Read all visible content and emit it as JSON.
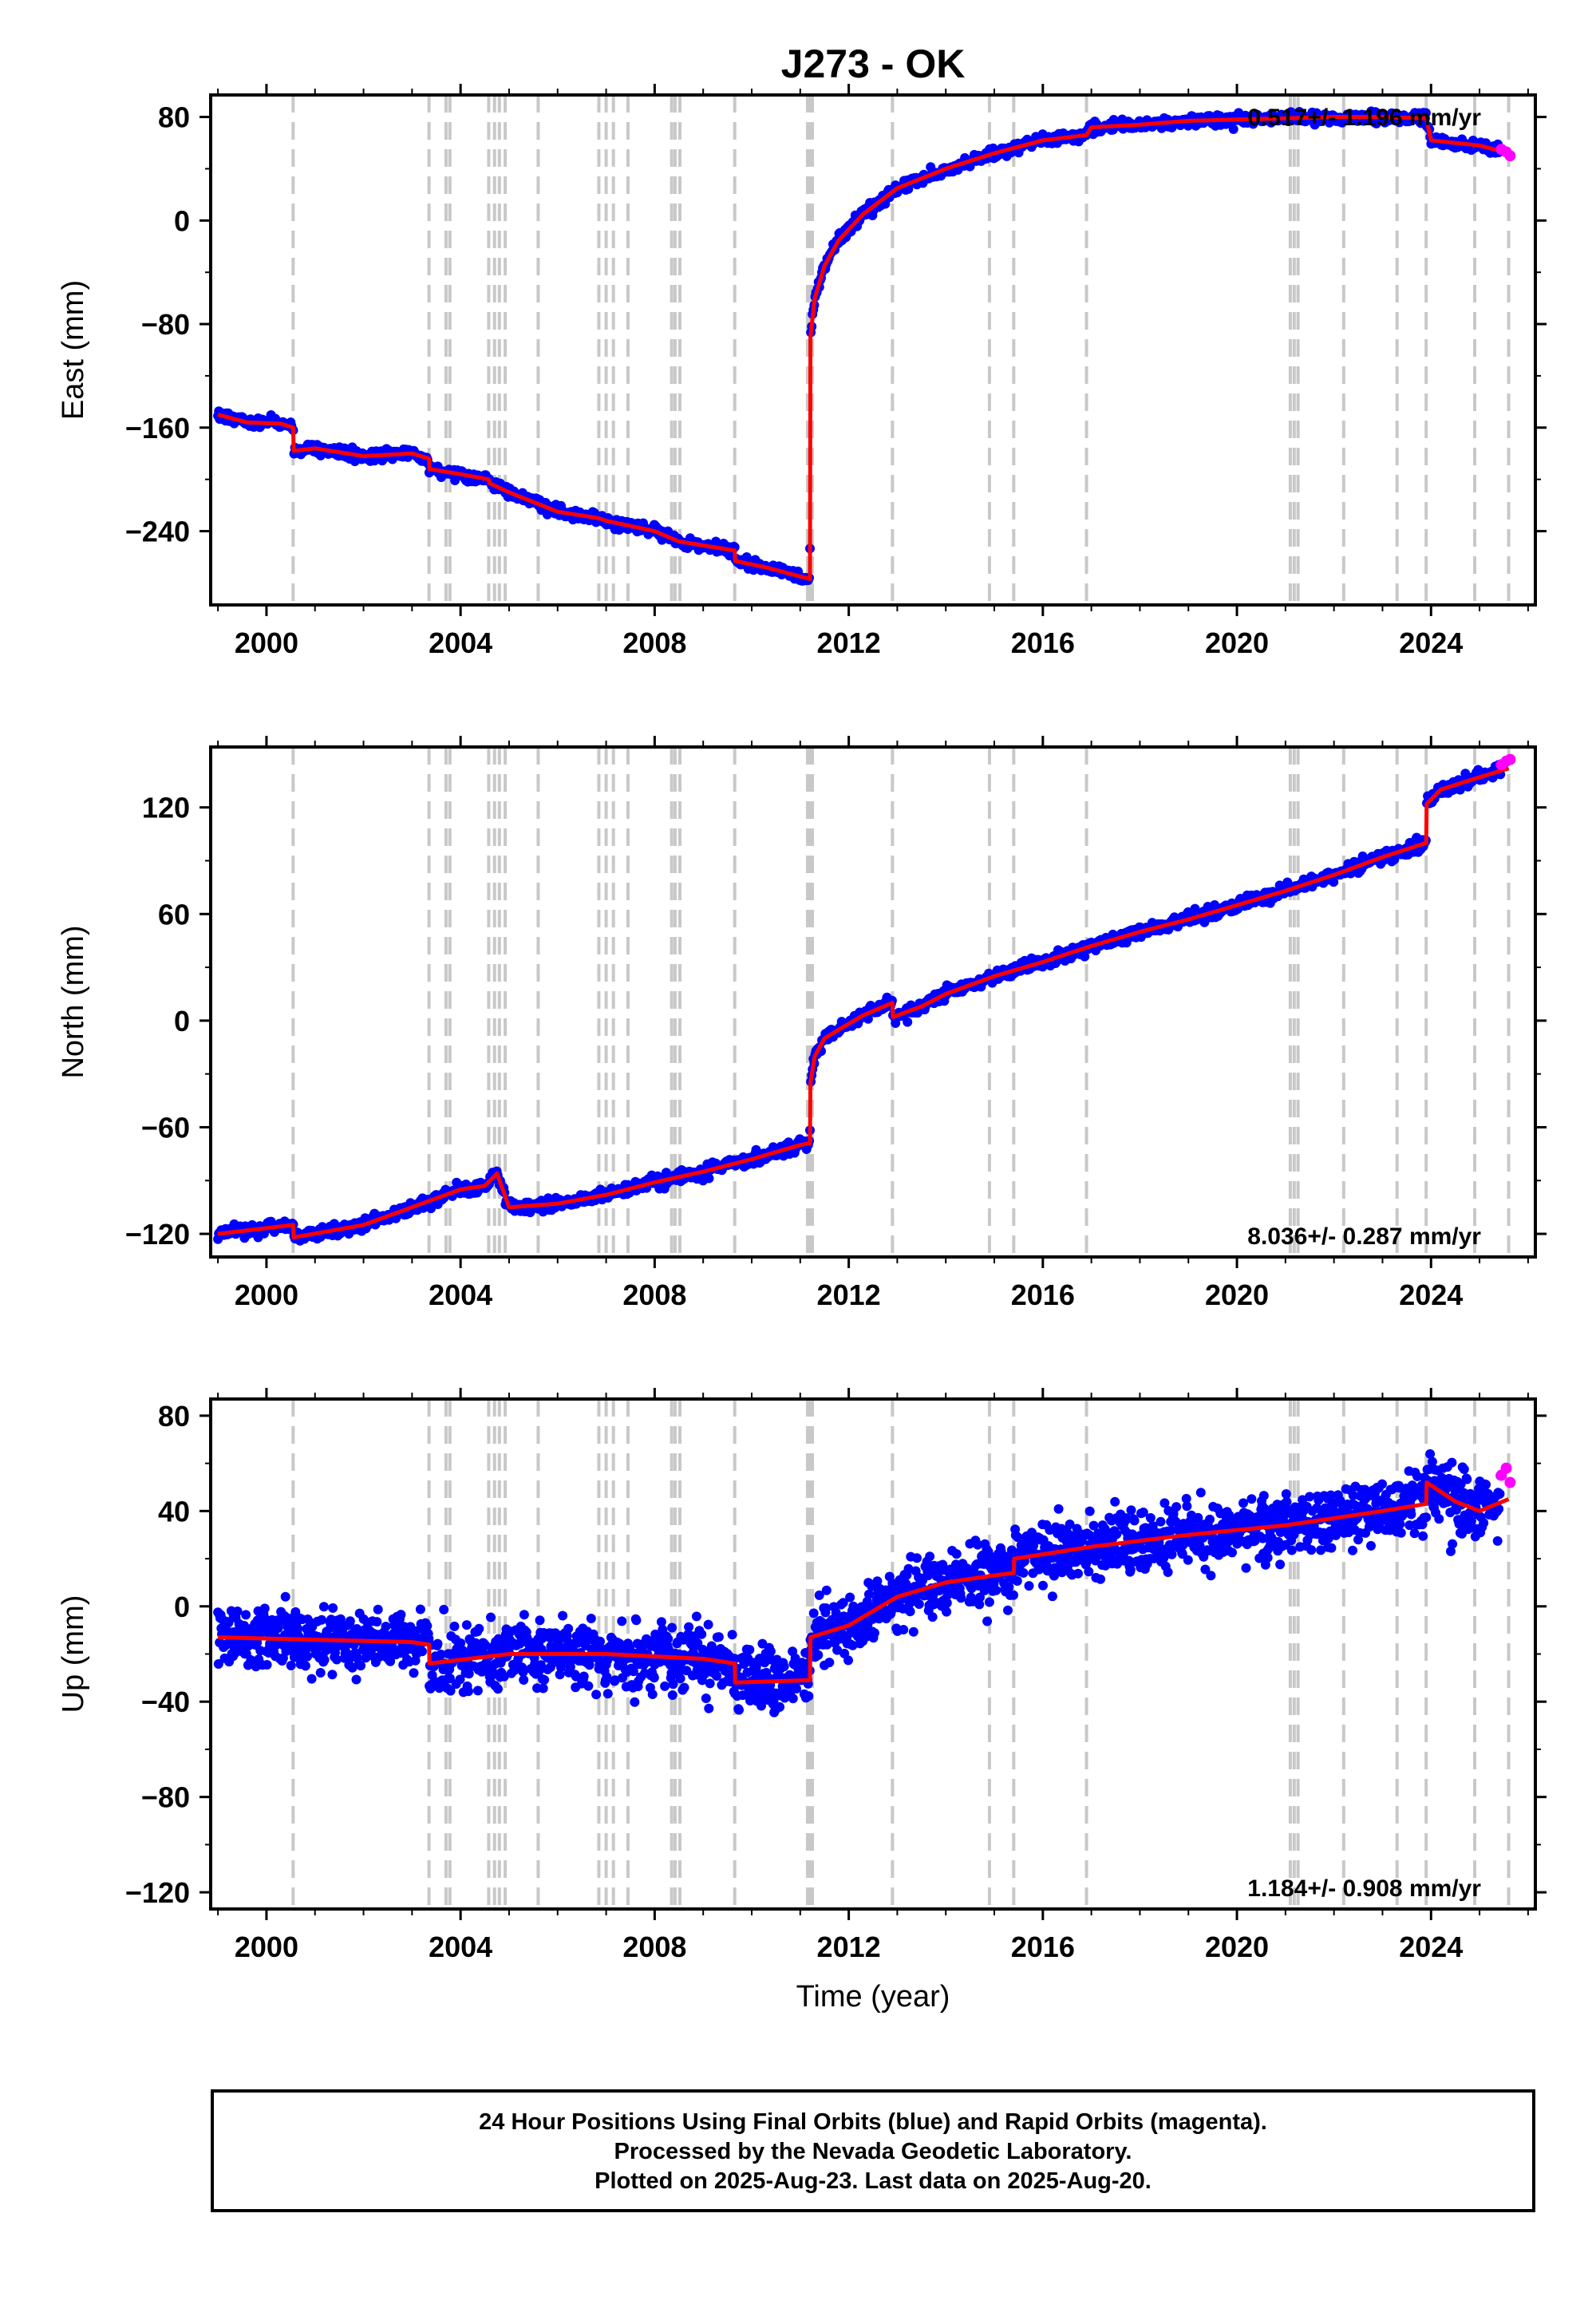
{
  "chart_data": {
    "type": "scatter",
    "title": "J273 - OK",
    "xlabel": "Time (year)",
    "xlim": [
      1998.85,
      2026.15
    ],
    "xticks": [
      2000,
      2004,
      2008,
      2012,
      2016,
      2020,
      2024
    ],
    "grid": false,
    "equipment_changes": [
      2000.55,
      2003.35,
      2003.7,
      2003.78,
      2004.58,
      2004.7,
      2004.8,
      2004.92,
      2005.6,
      2006.85,
      2007.0,
      2007.15,
      2007.45,
      2008.35,
      2008.42,
      2008.52,
      2009.65,
      2011.15,
      2011.2,
      2011.25,
      2012.9,
      2014.9,
      2015.4,
      2016.9,
      2021.1,
      2021.18,
      2021.26,
      2022.2,
      2023.3,
      2023.9,
      2024.9,
      2025.6
    ],
    "panels": [
      {
        "name": "East",
        "ylabel": "East (mm)",
        "ylim": [
          -297,
          97
        ],
        "yticks": [
          -240,
          -160,
          -80,
          0,
          80
        ],
        "rate": "0.517+/- 1.196 mm/yr",
        "rate_pos": "top-right",
        "scatter": 3,
        "model": {
          "x": [
            1999.0,
            1999.6,
            2000.3,
            2000.55,
            2000.56,
            2001.0,
            2002.0,
            2003.0,
            2003.35,
            2003.36,
            2004.0,
            2004.58,
            2004.6,
            2005.0,
            2005.6,
            2006.0,
            2006.85,
            2007.0,
            2008.0,
            2008.5,
            2009.0,
            2009.65,
            2009.66,
            2010.3,
            2011.0,
            2011.2,
            2011.21,
            2011.3,
            2011.5,
            2011.8,
            2012.3,
            2013.0,
            2014.0,
            2015.0,
            2016.0,
            2016.9,
            2017.0,
            2018.0,
            2019.0,
            2020.0,
            2021.0,
            2022.0,
            2023.0,
            2023.9,
            2024.0,
            2025.0,
            2025.6
          ],
          "y": [
            -150,
            -156,
            -157,
            -160,
            -178,
            -176,
            -182,
            -180,
            -184,
            -192,
            -196,
            -200,
            -203,
            -210,
            -219,
            -225,
            -230,
            -232,
            -240,
            -248,
            -251,
            -255,
            -263,
            -268,
            -275,
            -277,
            -90,
            -60,
            -35,
            -15,
            5,
            25,
            40,
            52,
            62,
            66,
            72,
            74,
            77,
            78,
            79,
            80,
            80,
            79,
            62,
            58,
            52
          ]
        },
        "rapid": {
          "x": [
            2025.45,
            2025.55,
            2025.63
          ],
          "y": [
            55,
            53,
            50
          ]
        }
      },
      {
        "name": "North",
        "ylabel": "North (mm)",
        "ylim": [
          -133,
          154
        ],
        "yticks": [
          -120,
          -60,
          0,
          60,
          120
        ],
        "rate": "8.036+/- 0.287 mm/yr",
        "rate_pos": "bottom-right",
        "scatter": 2.5,
        "model": {
          "x": [
            1999.0,
            2000.55,
            2000.56,
            2002.0,
            2003.0,
            2004.0,
            2004.5,
            2004.75,
            2005.0,
            2006.0,
            2007.0,
            2008.0,
            2009.0,
            2010.0,
            2011.0,
            2011.2,
            2011.21,
            2011.3,
            2011.5,
            2011.8,
            2012.3,
            2012.9,
            2012.91,
            2013.5,
            2014.0,
            2015.0,
            2016.0,
            2017.0,
            2018.0,
            2019.0,
            2020.0,
            2021.0,
            2022.0,
            2023.0,
            2023.9,
            2023.91,
            2024.2,
            2025.0,
            2025.6
          ],
          "y": [
            -120,
            -115,
            -122,
            -115,
            -105,
            -95,
            -93,
            -86,
            -105,
            -103,
            -98,
            -91,
            -85,
            -78,
            -70,
            -69,
            -35,
            -20,
            -10,
            -5,
            3,
            10,
            2,
            8,
            15,
            25,
            33,
            42,
            50,
            57,
            65,
            73,
            82,
            92,
            100,
            122,
            130,
            137,
            142
          ]
        },
        "rapid": {
          "x": [
            2025.45,
            2025.55,
            2025.63
          ],
          "y": [
            144,
            146,
            147
          ]
        }
      },
      {
        "name": "Up",
        "ylabel": "Up (mm)",
        "ylim": [
          -127,
          87
        ],
        "yticks": [
          -120,
          -80,
          -40,
          0,
          40,
          80
        ],
        "rate": "1.184+/- 0.908 mm/yr",
        "rate_pos": "bottom-right",
        "scatter": 9,
        "model": {
          "x": [
            1999.0,
            2001.0,
            2003.0,
            2003.35,
            2003.36,
            2005.0,
            2007.0,
            2009.0,
            2009.65,
            2009.66,
            2011.2,
            2011.21,
            2012.0,
            2013.0,
            2014.0,
            2015.0,
            2015.4,
            2015.41,
            2017.0,
            2019.0,
            2021.0,
            2023.0,
            2023.9,
            2023.91,
            2024.5,
            2025.0,
            2025.6
          ],
          "y": [
            -13,
            -14,
            -15,
            -16,
            -24,
            -20,
            -20,
            -22,
            -24,
            -32,
            -31,
            -13,
            -8,
            4,
            10,
            13,
            14,
            20,
            25,
            30,
            34,
            40,
            43,
            52,
            44,
            40,
            45
          ]
        },
        "rapid": {
          "x": [
            2025.45,
            2025.55,
            2025.63
          ],
          "y": [
            55,
            58,
            52
          ]
        }
      }
    ]
  },
  "footer": {
    "line1": "24 Hour Positions Using Final Orbits (blue) and Rapid Orbits (magenta).",
    "line2": "Processed by the Nevada Geodetic Laboratory.",
    "line3": "Plotted on 2025-Aug-23. Last data on 2025-Aug-20."
  },
  "colors": {
    "final_orbits": "#0000ff",
    "rapid_orbits": "#ff00ff",
    "model": "#ff0000",
    "equipment_lines": "#c8c8c8"
  }
}
